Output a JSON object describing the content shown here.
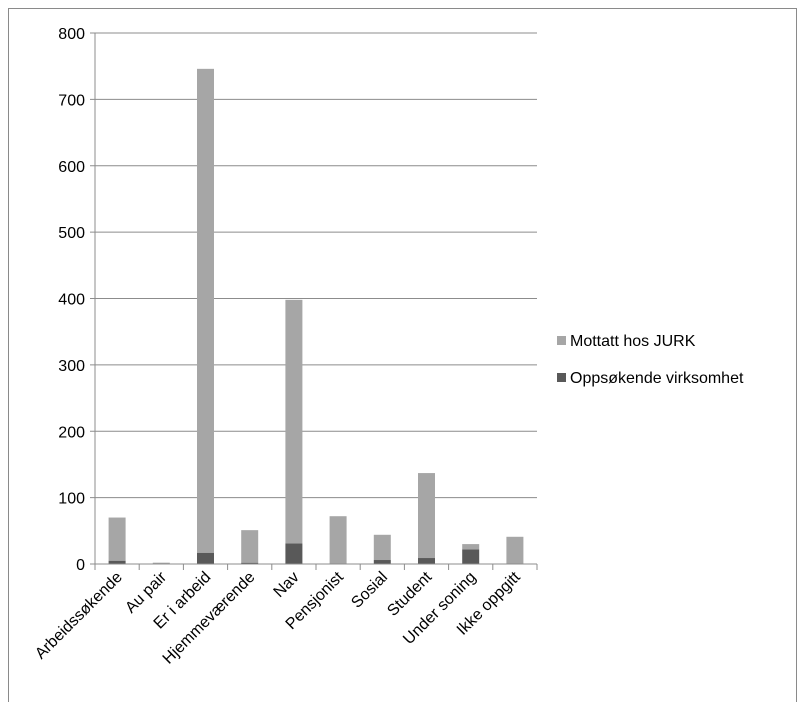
{
  "chart_data": {
    "type": "bar",
    "stacked": true,
    "categories": [
      "Arbeidssøkende",
      "Au pair",
      "Er i arbeid",
      "Hjemmeværende",
      "Nav",
      "Pensjonist",
      "Sosial",
      "Student",
      "Under soning",
      "Ikke oppgitt"
    ],
    "series": [
      {
        "name": "Oppsøkende virksomhet",
        "values": [
          5,
          0,
          17,
          2,
          31,
          0,
          6,
          9,
          22,
          0
        ],
        "color": "#595959"
      },
      {
        "name": "Mottatt hos JURK",
        "values": [
          65,
          2,
          729,
          49,
          367,
          72,
          38,
          128,
          8,
          41
        ],
        "color": "#a6a6a6"
      }
    ],
    "ylim": [
      0,
      800
    ],
    "yticks": [
      "0",
      "100",
      "200",
      "300",
      "400",
      "500",
      "600",
      "700",
      "800"
    ],
    "grid": true,
    "legend_position": "right",
    "title": "",
    "xlabel": "",
    "ylabel": ""
  }
}
